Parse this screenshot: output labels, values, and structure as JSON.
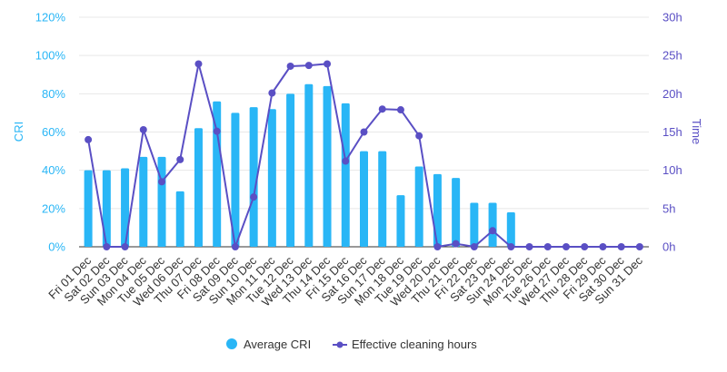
{
  "colors": {
    "bars": "#29b6f6",
    "line": "#5a4fc4",
    "grid": "#e8e8e8"
  },
  "chart_data": {
    "type": "bar",
    "categories": [
      "Fri 01 Dec",
      "Sat 02 Dec",
      "Sun 03 Dec",
      "Mon 04 Dec",
      "Tue 05 Dec",
      "Wed 06 Dec",
      "Thu 07 Dec",
      "Fri 08 Dec",
      "Sat 09 Dec",
      "Sun 10 Dec",
      "Mon 11 Dec",
      "Tue 12 Dec",
      "Wed 13 Dec",
      "Thu 14 Dec",
      "Fri 15 Dec",
      "Sat 16 Dec",
      "Sun 17 Dec",
      "Mon 18 Dec",
      "Tue 19 Dec",
      "Wed 20 Dec",
      "Thu 21 Dec",
      "Fri 22 Dec",
      "Sat 23 Dec",
      "Sun 24 Dec",
      "Mon 25 Dec",
      "Tue 26 Dec",
      "Wed 27 Dec",
      "Thu 28 Dec",
      "Fri 29 Dec",
      "Sat 30 Dec",
      "Sun 31 Dec"
    ],
    "series": [
      {
        "name": "Average CRI",
        "type": "bar",
        "axis": "left",
        "values": [
          0.4,
          0.4,
          0.41,
          0.47,
          0.47,
          0.29,
          0.62,
          0.76,
          0.7,
          0.73,
          0.72,
          0.8,
          0.85,
          0.84,
          0.75,
          0.5,
          0.5,
          0.27,
          0.42,
          0.38,
          0.36,
          0.23,
          0.23,
          0.18,
          0,
          0,
          0,
          0,
          0,
          0,
          0
        ]
      },
      {
        "name": "Effective cleaning hours",
        "type": "line",
        "axis": "right",
        "values": [
          14.0,
          0,
          0,
          15.3,
          8.5,
          11.4,
          23.9,
          15.1,
          0,
          6.5,
          20.1,
          23.6,
          23.7,
          23.9,
          11.2,
          15.0,
          18.0,
          17.9,
          14.5,
          0,
          0.4,
          0,
          2.1,
          0,
          0,
          0,
          0,
          0,
          0,
          0,
          0
        ]
      }
    ],
    "y_left": {
      "label": "CRI",
      "ticks": [
        "0%",
        "20%",
        "40%",
        "60%",
        "80%",
        "100%",
        "120%"
      ],
      "range": [
        0,
        1.2
      ]
    },
    "y_right": {
      "label": "Time",
      "ticks": [
        "0h",
        "5h",
        "10h",
        "15h",
        "20h",
        "25h",
        "30h"
      ],
      "range": [
        0,
        30
      ]
    },
    "grid": true,
    "legend_position": "bottom"
  }
}
